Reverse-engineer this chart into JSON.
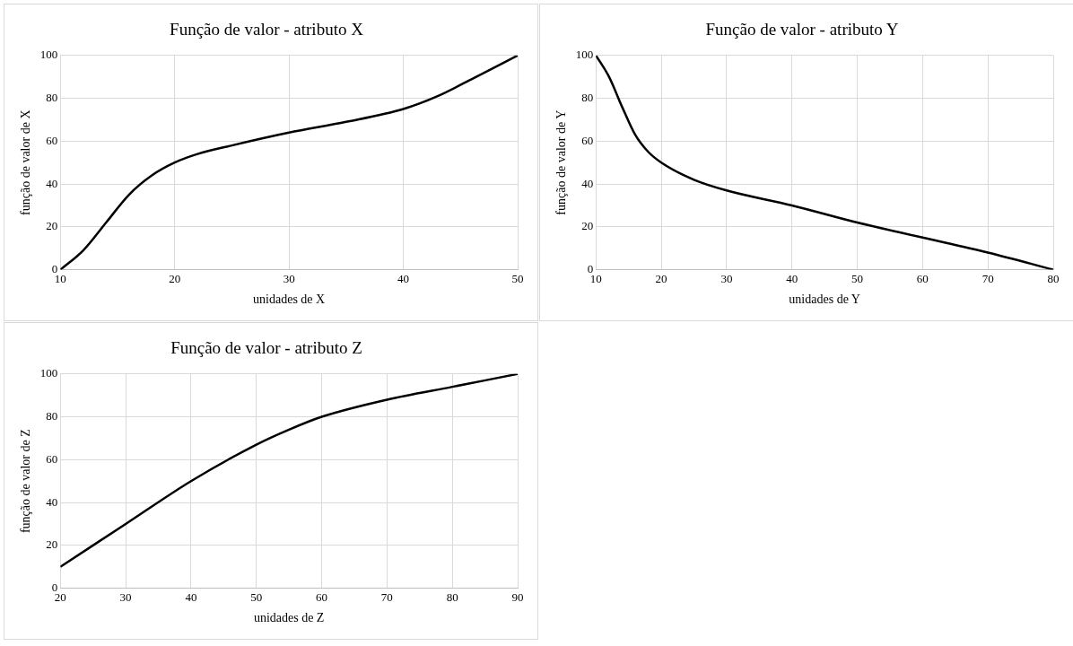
{
  "chart_data": [
    {
      "type": "line",
      "title": "Função de valor - atributo X",
      "xlabel": "unidades de X",
      "ylabel": "função de valor de X",
      "xlim": [
        10,
        50
      ],
      "xticks": [
        10,
        20,
        30,
        40,
        50
      ],
      "ylim": [
        0,
        100
      ],
      "yticks": [
        0,
        20,
        40,
        60,
        80,
        100
      ],
      "grid": true,
      "legend": false,
      "marker": "none",
      "line_style": "solid",
      "series": [
        {
          "color": "#000000",
          "x": [
            10,
            12,
            14,
            16,
            18,
            20,
            22,
            25,
            30,
            35,
            40,
            43,
            46,
            50
          ],
          "values": [
            0,
            9,
            22,
            35,
            44,
            50,
            54,
            58,
            64,
            69,
            75,
            81,
            89,
            100
          ]
        }
      ]
    },
    {
      "type": "line",
      "title": "Função de valor - atributo Y",
      "xlabel": "unidades de Y",
      "ylabel": "função de valor de Y",
      "xlim": [
        10,
        80
      ],
      "xticks": [
        10,
        20,
        30,
        40,
        50,
        60,
        70,
        80
      ],
      "ylim": [
        0,
        100
      ],
      "yticks": [
        0,
        20,
        40,
        60,
        80,
        100
      ],
      "grid": true,
      "legend": false,
      "marker": "none",
      "line_style": "solid",
      "series": [
        {
          "color": "#000000",
          "x": [
            10,
            12,
            14,
            16,
            18,
            20,
            25,
            30,
            40,
            50,
            60,
            70,
            80
          ],
          "values": [
            100,
            90,
            76,
            63,
            55,
            50,
            42,
            37,
            30,
            22,
            15,
            8,
            0
          ]
        }
      ]
    },
    {
      "type": "line",
      "title": "Função de valor - atributo Z",
      "xlabel": "unidades de Z",
      "ylabel": "função de valor de Z",
      "xlim": [
        20,
        90
      ],
      "xticks": [
        20,
        30,
        40,
        50,
        60,
        70,
        80,
        90
      ],
      "ylim": [
        0,
        100
      ],
      "yticks": [
        0,
        20,
        40,
        60,
        80,
        100
      ],
      "grid": true,
      "legend": false,
      "marker": "none",
      "line_style": "solid",
      "series": [
        {
          "color": "#000000",
          "x": [
            20,
            30,
            40,
            50,
            55,
            60,
            70,
            80,
            90
          ],
          "values": [
            10,
            30,
            50,
            67,
            74,
            80,
            88,
            94,
            100
          ]
        }
      ]
    }
  ]
}
